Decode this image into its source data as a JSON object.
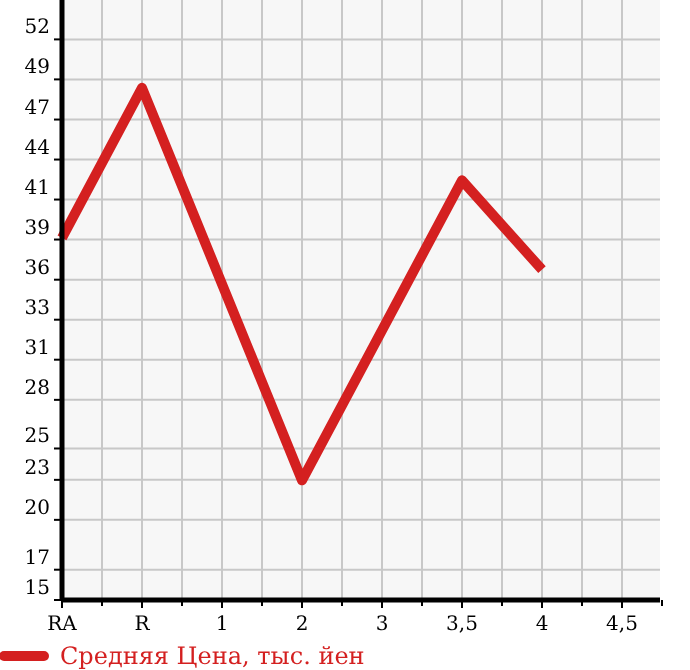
{
  "chart_data": {
    "type": "line",
    "categories": [
      "RA",
      "R",
      "1",
      "2",
      "3",
      "3,5",
      "4",
      "4,5"
    ],
    "series": [
      {
        "name": "Средняя Цена, тыс. йен",
        "color": "#d42020",
        "values": [
          38.9,
          48.8,
          null,
          22.9,
          null,
          42.7,
          36.8,
          null
        ]
      }
    ],
    "ylim": [
      15,
      54.6
    ],
    "yticks": [
      15,
      17,
      {
        "value": 20.29,
        "label": "20"
      },
      {
        "value": 22.93,
        "label": "23"
      },
      25,
      {
        "value": 28.21,
        "label": "28"
      },
      {
        "value": 30.86,
        "label": "31"
      },
      {
        "value": 33.5,
        "label": "33"
      },
      {
        "value": 36.14,
        "label": "36"
      },
      {
        "value": 38.79,
        "label": "39"
      },
      {
        "value": 41.43,
        "label": "41"
      },
      {
        "value": 44.07,
        "label": "44"
      },
      {
        "value": 46.71,
        "label": "47"
      },
      {
        "value": 49.36,
        "label": "49"
      },
      52
    ],
    "grid": true,
    "legend": "bottom",
    "marker": "none",
    "line_style": "solid"
  }
}
